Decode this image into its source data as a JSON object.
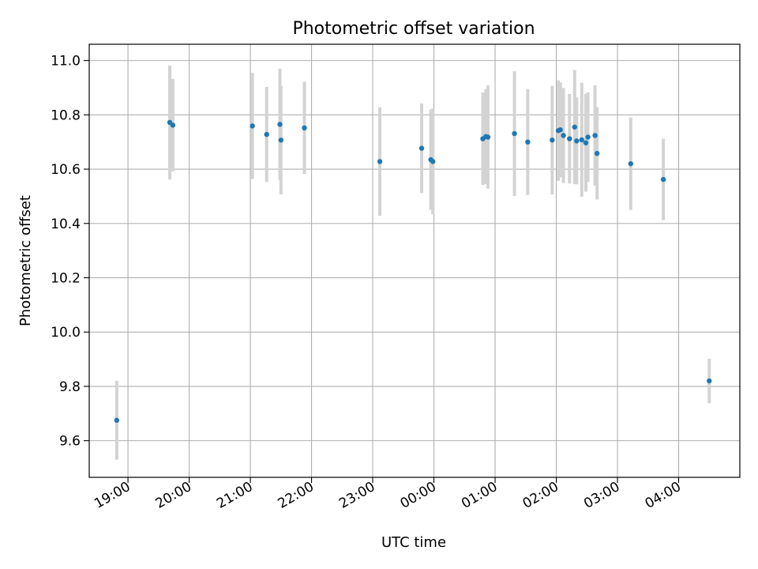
{
  "chart_data": {
    "type": "scatter",
    "title": "Photometric offset variation",
    "xlabel": "UTC time",
    "ylabel": "Photometric offset",
    "x_ticks": [
      "19:00",
      "20:00",
      "21:00",
      "22:00",
      "23:00",
      "00:00",
      "01:00",
      "02:00",
      "03:00",
      "04:00"
    ],
    "xlim": [
      "18:22",
      "05:00"
    ],
    "y_ticks": [
      9.6,
      9.8,
      10.0,
      10.2,
      10.4,
      10.6,
      10.8,
      11.0
    ],
    "ylim": [
      9.465,
      11.06
    ],
    "grid": true,
    "point_color": "#1f77b4",
    "errorbar_color": "#d3d3d3",
    "points": [
      {
        "t": "18:49",
        "y": 9.675,
        "err": 0.145
      },
      {
        "t": "19:41",
        "y": 10.772,
        "err": 0.21
      },
      {
        "t": "19:44",
        "y": 10.762,
        "err": 0.17
      },
      {
        "t": "21:02",
        "y": 10.759,
        "err": 0.195
      },
      {
        "t": "21:16",
        "y": 10.728,
        "err": 0.175
      },
      {
        "t": "21:29",
        "y": 10.765,
        "err": 0.205
      },
      {
        "t": "21:30",
        "y": 10.707,
        "err": 0.2
      },
      {
        "t": "21:53",
        "y": 10.752,
        "err": 0.17
      },
      {
        "t": "23:07",
        "y": 10.628,
        "err": 0.2
      },
      {
        "t": "23:48",
        "y": 10.677,
        "err": 0.165
      },
      {
        "t": "23:57",
        "y": 10.635,
        "err": 0.185
      },
      {
        "t": "23:59",
        "y": 10.628,
        "err": 0.195
      },
      {
        "t": "00:48",
        "y": 10.712,
        "err": 0.17
      },
      {
        "t": "00:51",
        "y": 10.72,
        "err": 0.175
      },
      {
        "t": "00:53",
        "y": 10.718,
        "err": 0.19
      },
      {
        "t": "01:19",
        "y": 10.731,
        "err": 0.23
      },
      {
        "t": "01:32",
        "y": 10.7,
        "err": 0.195
      },
      {
        "t": "01:56",
        "y": 10.707,
        "err": 0.2
      },
      {
        "t": "02:02",
        "y": 10.742,
        "err": 0.185
      },
      {
        "t": "02:04",
        "y": 10.745,
        "err": 0.175
      },
      {
        "t": "02:07",
        "y": 10.724,
        "err": 0.175
      },
      {
        "t": "02:13",
        "y": 10.712,
        "err": 0.165
      },
      {
        "t": "02:18",
        "y": 10.755,
        "err": 0.21
      },
      {
        "t": "02:20",
        "y": 10.704,
        "err": 0.16
      },
      {
        "t": "02:25",
        "y": 10.708,
        "err": 0.21
      },
      {
        "t": "02:29",
        "y": 10.697,
        "err": 0.18
      },
      {
        "t": "02:31",
        "y": 10.718,
        "err": 0.165
      },
      {
        "t": "02:38",
        "y": 10.724,
        "err": 0.185
      },
      {
        "t": "02:40",
        "y": 10.658,
        "err": 0.17
      },
      {
        "t": "03:13",
        "y": 10.62,
        "err": 0.17
      },
      {
        "t": "03:45",
        "y": 10.562,
        "err": 0.15
      },
      {
        "t": "04:30",
        "y": 9.82,
        "err": 0.082
      }
    ]
  }
}
